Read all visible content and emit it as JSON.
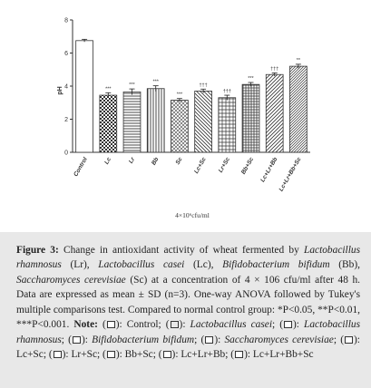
{
  "chart_data": {
    "type": "bar",
    "ylabel": "pH",
    "xlabel": "4×10⁶cfu/ml",
    "ylim": [
      0,
      8
    ],
    "yticks": [
      0,
      2,
      4,
      6,
      8
    ],
    "categories": [
      "Control",
      "Lc",
      "Lr",
      "Bb",
      "Sc",
      "Lc+Sc",
      "Lr+Sc",
      "Bb+Sc",
      "Lc+Lr+Bb",
      "Lc+Lr+Bb+Sc"
    ],
    "values": [
      6.75,
      3.45,
      3.65,
      3.85,
      3.15,
      3.7,
      3.3,
      4.1,
      4.7,
      5.2
    ],
    "errors": [
      0.08,
      0.15,
      0.18,
      0.17,
      0.1,
      0.12,
      0.15,
      0.12,
      0.1,
      0.12
    ],
    "significance": [
      "",
      "***",
      "***",
      "***",
      "***",
      "†††",
      "†††",
      "***",
      "†††",
      "**"
    ],
    "patterns": [
      "none",
      "checker",
      "hlines",
      "vlines",
      "diag-cross",
      "diag-back",
      "grid",
      "dense-grid",
      "diag-fwd",
      "diag-tight"
    ]
  },
  "caption": {
    "label": "Figure 3:",
    "text_1": " Change in antioxidant activity of wheat fermented by ",
    "lr": "Lactobacillus rhamnosus",
    "text_2": " (Lr), ",
    "lc": "Lactobacillus casei",
    "text_3": " (Lc), ",
    "bb_1": "Bifidobacterium bifidum",
    "text_4": " (Bb), ",
    "sc_1": "Saccharomyces cerevisiae",
    "text_5": " (Sc) at a concentration of 4 × 106 cfu/ml after 48 h. Data are expressed as mean ± SD (n=3). One-way ANOVA followed by Tukey's multiple comparisons test. Compared to normal control group: *P<0.05, **P<0.01, ***P<0.001. ",
    "note_label": "Note:",
    "legend_control": "): Control; (",
    "legend_lc": "Lactobacillus casei",
    "legend_sep1": "; (",
    "legend_lr": "Lactobacillus rhamnosus",
    "legend_sep2": "; (",
    "legend_bb": "Bifidobacterium bifidum",
    "legend_sep3": "; (",
    "legend_sc": "Saccharomyces cerevisiae",
    "legend_lcsc": "): Lc+Sc; (",
    "legend_lrsc": "): Lr+Sc; (",
    "legend_bbsc": "): Bb+Sc; (",
    "legend_lclrbb": "): Lc+Lr+Bb; (",
    "legend_all": "): Lc+Lr+Bb+Sc"
  }
}
